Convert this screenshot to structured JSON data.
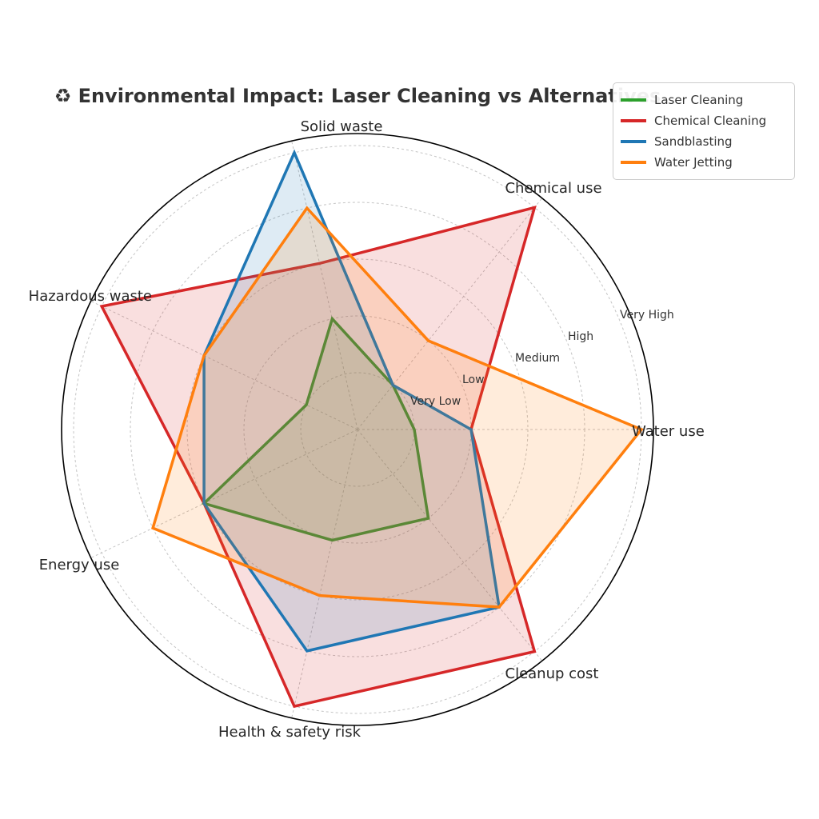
{
  "title": {
    "text": "♻ Environmental Impact: Laser Cleaning vs Alternatives",
    "color": "#333333"
  },
  "chart_data": {
    "type": "radar",
    "title": "♻ Environmental Impact: Laser Cleaning vs Alternatives",
    "categories": [
      "Water use",
      "Chemical use",
      "Solid waste",
      "Hazardous waste",
      "Energy use",
      "Health & safety risk",
      "Cleanup cost"
    ],
    "scale_labels": [
      "Very Low",
      "Low",
      "Medium",
      "High",
      "Very High"
    ],
    "scale_values": [
      1,
      2,
      3,
      4,
      5
    ],
    "r_axis_range": [
      0,
      5.2
    ],
    "start_angle_deg": 0,
    "direction": "counterclockwise",
    "grid": "dashed",
    "legend_position": "upper right",
    "series": [
      {
        "name": "Laser Cleaning",
        "color": "#2ca02c",
        "values": [
          1,
          1,
          2,
          1,
          3,
          2,
          2
        ]
      },
      {
        "name": "Chemical Cleaning",
        "color": "#d62728",
        "values": [
          2,
          5,
          3,
          5,
          3,
          5,
          5
        ]
      },
      {
        "name": "Sandblasting",
        "color": "#1f77b4",
        "values": [
          2,
          1,
          5,
          3,
          3,
          4,
          4
        ]
      },
      {
        "name": "Water Jetting",
        "color": "#ff7f0e",
        "values": [
          5,
          2,
          4,
          3,
          4,
          3,
          4
        ]
      }
    ]
  }
}
